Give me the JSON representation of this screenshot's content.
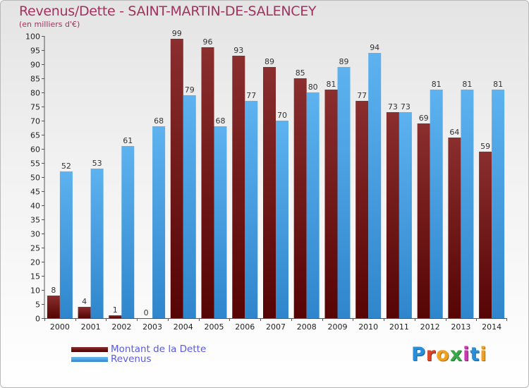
{
  "header": {
    "title": "Revenus/Dette - SAINT-MARTIN-DE-SALENCEY",
    "subtitle": "(en milliers d'€)"
  },
  "legend": {
    "items": [
      {
        "label": "Montant de la Dette",
        "color": "#6b0d0d"
      },
      {
        "label": "Revenus",
        "color": "#4aa3e8"
      }
    ]
  },
  "logo": {
    "text": "Proxiti"
  },
  "colors": {
    "title": "#a2315d",
    "legend_text": "#5a5ae0",
    "dette": "#6b0d0d",
    "revenus": "#4aa3e8"
  },
  "chart_data": {
    "type": "bar",
    "title": "Revenus/Dette - SAINT-MARTIN-DE-SALENCEY",
    "subtitle": "(en milliers d'€)",
    "xlabel": "",
    "ylabel": "",
    "ylim": [
      0,
      100
    ],
    "yticks": [
      0,
      5,
      10,
      15,
      20,
      25,
      30,
      35,
      40,
      45,
      50,
      55,
      60,
      65,
      70,
      75,
      80,
      85,
      90,
      95,
      100
    ],
    "grid": false,
    "legend_position": "bottom-left",
    "categories": [
      "2000",
      "2001",
      "2002",
      "2003",
      "2004",
      "2005",
      "2006",
      "2007",
      "2008",
      "2009",
      "2010",
      "2011",
      "2012",
      "2013",
      "2014"
    ],
    "series": [
      {
        "name": "Montant de la Dette",
        "values": [
          8,
          4,
          1,
          0,
          99,
          96,
          93,
          89,
          85,
          81,
          77,
          73,
          69,
          64,
          59
        ]
      },
      {
        "name": "Revenus",
        "values": [
          52,
          53,
          61,
          68,
          79,
          68,
          77,
          70,
          80,
          89,
          94,
          73,
          81,
          81,
          81
        ]
      }
    ]
  }
}
